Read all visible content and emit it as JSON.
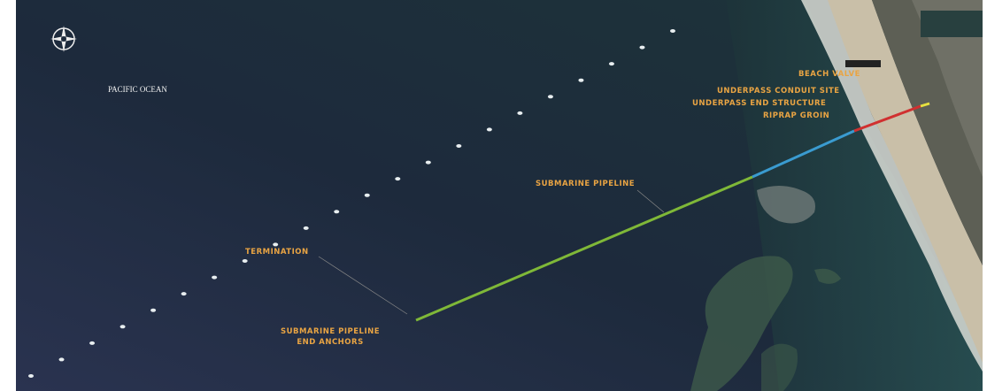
{
  "map": {
    "ocean_label": "PACIFIC OCEAN",
    "labels": [
      "BEACH VALVE",
      "UNDERPASS CONDUIT SITE",
      "UNDERPASS END STRUCTURE",
      "RIPRAP GROIN",
      "SUBMARINE PIPELINE",
      "TERMINATION",
      "SUBMARINE PIPELINE",
      "END ANCHORS"
    ]
  }
}
